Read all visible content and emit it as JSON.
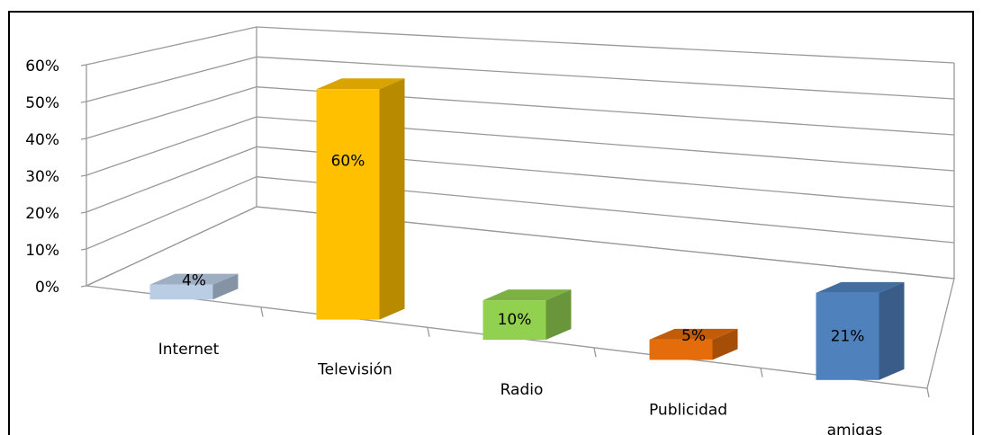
{
  "chart_data": {
    "type": "bar3d",
    "categories": [
      "Internet",
      "Televisión",
      "Radio",
      "Publicidad",
      "amigas"
    ],
    "values": [
      4,
      60,
      10,
      5,
      21
    ],
    "value_labels": [
      "4%",
      "60%",
      "10%",
      "5%",
      "21%"
    ],
    "colors": [
      "#b9cde5",
      "#ffc000",
      "#92d050",
      "#e46c0a",
      "#4f81bd"
    ],
    "ylim": [
      0,
      60
    ],
    "yticks": [
      {
        "value": 0,
        "label": "0%"
      },
      {
        "value": 10,
        "label": "10%"
      },
      {
        "value": 20,
        "label": "20%"
      },
      {
        "value": 30,
        "label": "30%"
      },
      {
        "value": 40,
        "label": "40%"
      },
      {
        "value": 50,
        "label": "50%"
      },
      {
        "value": 60,
        "label": "60%"
      }
    ],
    "grid": true
  }
}
